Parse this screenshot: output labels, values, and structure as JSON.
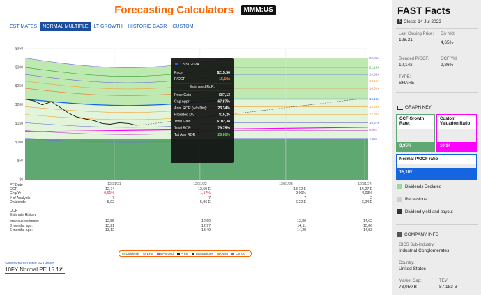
{
  "header": {
    "title": "Forecasting Calculators",
    "ticker": "MMM:US"
  },
  "tabs": [
    {
      "label": "ESTIMATES",
      "active": false
    },
    {
      "label": "NORMAL MULTIPLE",
      "active": true
    },
    {
      "label": "LT GROWTH",
      "active": false
    },
    {
      "label": "HISTORIC CAGR",
      "active": false
    },
    {
      "label": "CUSTOM",
      "active": false
    }
  ],
  "chart_data": {
    "type": "area",
    "ylim": [
      0,
      350
    ],
    "y_ticks": [
      "$0",
      "$50",
      "$100",
      "$150",
      "$200",
      "$250",
      "$300",
      "$350"
    ],
    "y_tick_values": [
      0,
      50,
      100,
      150,
      200,
      250,
      300,
      350
    ],
    "x_ticks": [
      "12/31/21",
      "12/31/22",
      "12/31/23",
      "12/31/24"
    ],
    "multiple_labels": [
      "22,85x",
      "21,14x",
      "19,63x",
      "18,12x",
      "16,61x",
      "15,10x",
      "13,59x",
      "12,08x",
      "10,57x",
      "9,06x",
      "7,55x"
    ],
    "multiple_end_values": [
      325,
      300,
      281,
      263,
      244,
      215,
      195,
      174,
      152,
      131,
      109
    ],
    "ocf_area_values": [
      108,
      108,
      108,
      108
    ],
    "price_line": [
      [
        0,
        215
      ],
      [
        0.05,
        210
      ],
      [
        0.09,
        200
      ],
      [
        0.14,
        208
      ],
      [
        0.18,
        195
      ],
      [
        0.23,
        178
      ],
      [
        0.27,
        168
      ],
      [
        0.32,
        162
      ],
      [
        0.36,
        158
      ],
      [
        0.41,
        150
      ],
      [
        0.45,
        148
      ],
      [
        0.5,
        152
      ],
      [
        0.55,
        150
      ],
      [
        0.59,
        145
      ]
    ],
    "tooltip": {
      "date": "12/31/2024",
      "rows": [
        {
          "label": "Price:",
          "value": "$215,50",
          "color": "#ffffff"
        },
        {
          "label": "P/OCF",
          "value": "15,10x",
          "color": "#ff8a3d"
        }
      ],
      "section": "Estimated RoR:",
      "ror_rows": [
        {
          "label": "Price Gain",
          "value": "$87,13"
        },
        {
          "label": "Cap Appr",
          "value": "67,87%"
        },
        {
          "label": "Ann. ROR (w/o Div):",
          "value": "23,34%"
        },
        {
          "label": "Prorated Div",
          "value": "$15,25"
        },
        {
          "label": "Total Gain",
          "value": "$102,38"
        },
        {
          "label": "Total ROR",
          "value": "79,75%"
        },
        {
          "label": "Tot Ann ROR",
          "value": "26,80%",
          "color": "#6bd36b"
        }
      ]
    }
  },
  "fy_label": "FY Date",
  "data_rows": [
    {
      "label": "OCF",
      "values": [
        "12,74",
        "12,59 E",
        "13,72 E",
        "14,27 E"
      ]
    },
    {
      "label": "Chg/Yr",
      "values": [
        "-0,61%",
        "-1,17%",
        "9,00%",
        "4,03%"
      ],
      "neg": [
        true,
        true,
        false,
        false
      ]
    },
    {
      "label": "# of Analysts",
      "values": [
        "7",
        "7",
        "7",
        "2"
      ]
    },
    {
      "label": "Dividends",
      "values": [
        "5,92",
        "5,96 E",
        "6,22 E",
        "6,24 E"
      ]
    }
  ],
  "history_title_1": "OCF",
  "history_title_2": "Estimate History",
  "history_rows": [
    {
      "label": "previous estimate:",
      "values": [
        "12,55",
        "12,60",
        "13,80",
        "14,62"
      ]
    },
    {
      "label": "3 months ago:",
      "values": [
        "13,21",
        "12,97",
        "14,11",
        "15,06"
      ]
    },
    {
      "label": "6 months ago:",
      "values": [
        "13,12",
        "13,49",
        "14,29",
        "14,93"
      ]
    }
  ],
  "legend": [
    {
      "label": "Dividends",
      "color": "#9bd89b"
    },
    {
      "label": "EPS",
      "color": "#f2a2c0"
    },
    {
      "label": "EPS Ovd",
      "color": "#c64bd1"
    },
    {
      "label": "Price",
      "color": "#222222"
    },
    {
      "label": "Transactions",
      "color": "#333333"
    },
    {
      "label": "Other",
      "color": "#f0a030"
    },
    {
      "label": "Cal Qt",
      "color": "#6b6bd8"
    }
  ],
  "precalc": {
    "label": "Select Precalculated PE Growth",
    "value": "10FY Normal PE 15.1x"
  },
  "fast_facts": {
    "title": "FAST Facts",
    "close": "Close: 14 Jul 2022",
    "items": [
      {
        "label": "Last Closing Price:",
        "value": "128.31"
      },
      {
        "label": "Div Yld:",
        "value": "4,65%"
      },
      {
        "label": "Blended P/OCF:",
        "value": "10,14x"
      },
      {
        "label": "OCF Yld:",
        "value": "9,86%"
      },
      {
        "label": "TYPE:",
        "value": "SHARE"
      }
    ],
    "graph_key_title": "GRAPH KEY",
    "ocf_growth_label": "OCF Growth Rate:",
    "ocf_growth_value": "3,95%",
    "custom_val_label": "Custom Valuation Ratio:",
    "custom_val_value": "10.14",
    "normal_pocf_label": "Normal P/OCF ratio",
    "normal_pocf_value": "15,10x",
    "keys": [
      "Dividends Declared",
      "Recessions",
      "Dividend yield and payout"
    ],
    "company_title": "COMPANY INFO",
    "gics_label": "GICS Sub-industry:",
    "gics_value": "Industrial Conglomerates",
    "country_label": "Country:",
    "country_value": "United States",
    "mcap_label": "Market Cap:",
    "mcap_value": "73,050 B",
    "tev_label": "TEV:",
    "tev_value": "87,183 B"
  },
  "colors": {
    "accent": "#ff6600",
    "tab_active": "#1a4fa0",
    "ocf_area": "#5fa872",
    "band_green": "#b7e8a8",
    "growth_box": "#5fa872",
    "custom_box": "#ff00ff",
    "normal_box": "#1565e0"
  }
}
